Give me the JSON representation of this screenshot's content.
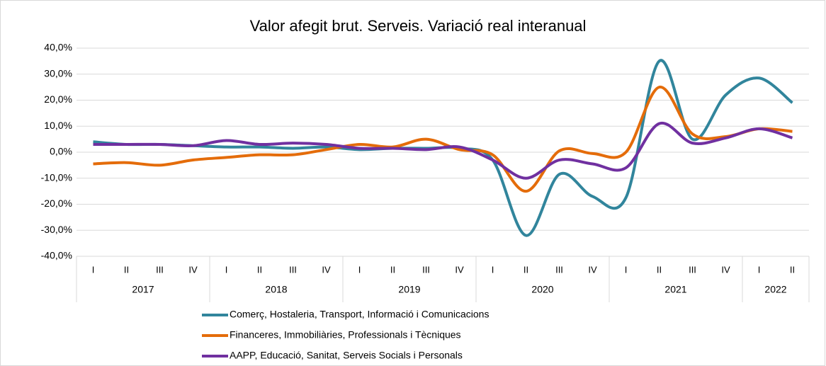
{
  "chart_data": {
    "type": "line",
    "title": "Valor afegit brut.  Serveis. Variació real interanual",
    "categories": [
      "I",
      "II",
      "III",
      "IV",
      "I",
      "II",
      "III",
      "IV",
      "I",
      "II",
      "III",
      "IV",
      "I",
      "II",
      "III",
      "IV",
      "I",
      "II",
      "III",
      "IV",
      "I",
      "II"
    ],
    "year_groups": [
      {
        "name": "2017",
        "count": 4
      },
      {
        "name": "2018",
        "count": 4
      },
      {
        "name": "2019",
        "count": 4
      },
      {
        "name": "2020",
        "count": 4
      },
      {
        "name": "2021",
        "count": 4
      },
      {
        "name": "2022",
        "count": 2
      }
    ],
    "series": [
      {
        "name": "Comerç, Hostaleria, Transport, Informació i Comunicacions",
        "color": "#31859c",
        "values": [
          4,
          3,
          3,
          2.5,
          2,
          2,
          1.5,
          2,
          1,
          1.5,
          1.5,
          1.5,
          -3,
          -32,
          -8.5,
          -17,
          -17.5,
          35,
          5,
          22,
          28.5,
          19
        ]
      },
      {
        "name": "Financeres, Immobiliàries, Professionals i Tècniques",
        "color": "#e46c0a",
        "values": [
          -4.5,
          -4,
          -5,
          -3,
          -2,
          -1,
          -1,
          1,
          3,
          2,
          5,
          1,
          -1,
          -15,
          0.5,
          -0.5,
          0,
          25,
          7,
          6,
          9,
          8
        ]
      },
      {
        "name": "AAPP, Educació, Sanitat, Serveis Socials i Personals",
        "color": "#7030a0",
        "values": [
          3,
          3,
          3,
          2.5,
          4.5,
          3,
          3.5,
          3,
          1.5,
          1.5,
          1,
          2,
          -3,
          -10,
          -3,
          -4.5,
          -6,
          11,
          3.5,
          5.5,
          9,
          5.5
        ]
      }
    ],
    "ylim": [
      -40,
      40
    ],
    "yticks": [
      {
        "value": -40,
        "label": "-40,0%"
      },
      {
        "value": -30,
        "label": "-30,0%"
      },
      {
        "value": -20,
        "label": "-20,0%"
      },
      {
        "value": -10,
        "label": "-10,0%"
      },
      {
        "value": 0,
        "label": "0,0%"
      },
      {
        "value": 10,
        "label": "10,0%"
      },
      {
        "value": 20,
        "label": "20,0%"
      },
      {
        "value": 30,
        "label": "30,0%"
      },
      {
        "value": 40,
        "label": "40,0%"
      }
    ],
    "grid": true,
    "legend": "bottom"
  }
}
